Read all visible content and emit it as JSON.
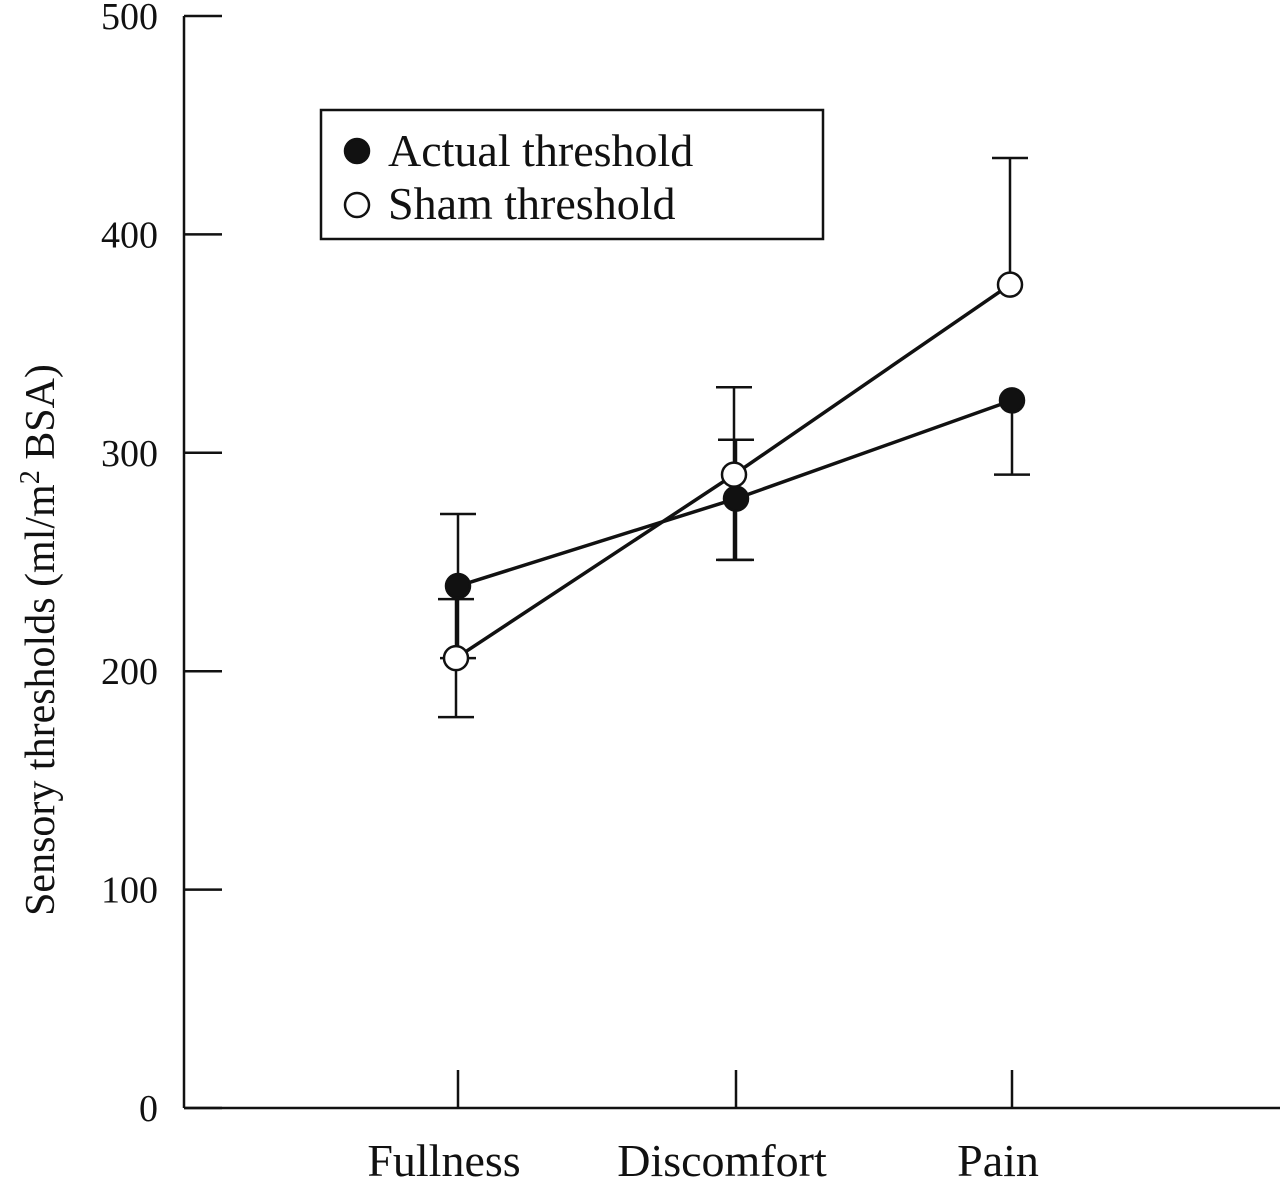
{
  "chart_data": {
    "type": "line",
    "title": "",
    "xlabel": "",
    "ylabel": "Sensory thresholds (ml/m",
    "ylabel_sup": "2",
    "ylabel_tail": " BSA)",
    "categories": [
      "Fullness",
      "Discomfort",
      "Pain"
    ],
    "ylim": [
      0,
      500
    ],
    "yticks": [
      "0",
      "100",
      "200",
      "300",
      "400",
      "500"
    ],
    "grid": false,
    "legend_position": "top-left",
    "series": [
      {
        "name": "Actual threshold",
        "marker": "filled-circle",
        "values": [
          239,
          279,
          324
        ],
        "error_upper": [
          272,
          306,
          324
        ],
        "error_lower": [
          206,
          251,
          290
        ]
      },
      {
        "name": "Sham threshold",
        "marker": "open-circle",
        "values": [
          206,
          290,
          377
        ],
        "error_upper": [
          233,
          330,
          435
        ],
        "error_lower": [
          179,
          251,
          377
        ]
      }
    ],
    "colors": {
      "ink": "#111111",
      "background": "#ffffff"
    }
  }
}
